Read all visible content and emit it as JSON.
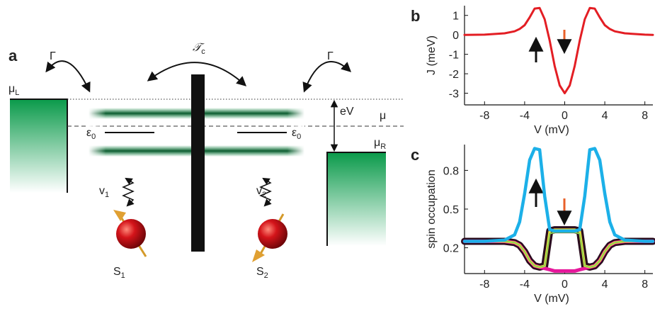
{
  "diagram": {
    "panel": "a",
    "labels": [
      {
        "text": "Γ"
      },
      {
        "text": "Γ"
      },
      {
        "text": "𝒯",
        "sub": "c"
      },
      {
        "text": "μ",
        "sub": "L"
      },
      {
        "text": "μ",
        "sub": "R"
      },
      {
        "text": "μ"
      },
      {
        "text": "eV"
      },
      {
        "text": "ε",
        "sub": "0"
      },
      {
        "text": "ε",
        "sub": "0"
      },
      {
        "text": "v",
        "sub": "1"
      },
      {
        "text": "v",
        "sub": "2"
      },
      {
        "text": "S",
        "sub": "1"
      },
      {
        "text": "S",
        "sub": "2"
      }
    ]
  },
  "chart_data": [
    {
      "type": "line",
      "panel": "b",
      "xlabel": "V (mV)",
      "ylabel": "J (meV)",
      "x": [
        -10,
        -8,
        -6,
        -5,
        -4.5,
        -4,
        -3.5,
        -3,
        -2.5,
        -2,
        -1.5,
        -1,
        -0.5,
        0,
        0.5,
        1,
        1.5,
        2,
        2.5,
        3,
        3.5,
        4,
        4.5,
        5,
        6,
        8,
        8.8
      ],
      "series": [
        {
          "color": "#e31e24",
          "values": [
            0,
            0.01,
            0.08,
            0.18,
            0.3,
            0.5,
            0.9,
            1.35,
            1.38,
            0.8,
            -0.3,
            -1.6,
            -2.6,
            -3,
            -2.6,
            -1.6,
            -0.3,
            0.8,
            1.38,
            1.35,
            0.9,
            0.5,
            0.3,
            0.18,
            0.08,
            0.01,
            0
          ]
        }
      ],
      "xlim": [
        -10,
        8.8
      ],
      "xticks": [
        -8,
        -4,
        0,
        4,
        8
      ],
      "ylim": [
        -3.6,
        1.5
      ],
      "yticks": [
        -3,
        -2,
        -1,
        0,
        1
      ]
    },
    {
      "type": "line",
      "panel": "c",
      "xlabel": "V (mV)",
      "ylabel": "spin occupation",
      "x": [
        -10,
        -8,
        -6,
        -5,
        -4.5,
        -4,
        -3.5,
        -3,
        -2.5,
        -2,
        -1.5,
        -1,
        -0.5,
        0,
        0.5,
        1,
        1.5,
        2,
        2.5,
        3,
        3.5,
        4,
        4.5,
        5,
        6,
        8,
        8.8
      ],
      "series": [
        {
          "color": "#2a0c1e",
          "values": [
            0.25,
            0.25,
            0.25,
            0.24,
            0.22,
            0.17,
            0.1,
            0.06,
            0.05,
            0.06,
            0.33,
            0.34,
            0.34,
            0.34,
            0.34,
            0.34,
            0.33,
            0.06,
            0.05,
            0.06,
            0.1,
            0.17,
            0.22,
            0.24,
            0.25,
            0.25,
            0.25
          ]
        },
        {
          "color": "#e6179b",
          "values": [
            0.25,
            0.25,
            0.25,
            0.24,
            0.22,
            0.17,
            0.1,
            0.06,
            0.05,
            0.04,
            0.03,
            0.02,
            0.02,
            0.02,
            0.02,
            0.02,
            0.03,
            0.04,
            0.05,
            0.06,
            0.1,
            0.17,
            0.22,
            0.24,
            0.25,
            0.25,
            0.25
          ]
        },
        {
          "color": "#f5e23f",
          "values": [
            0.25,
            0.25,
            0.25,
            0.24,
            0.22,
            0.17,
            0.1,
            0.06,
            0.05,
            0.06,
            0.33,
            0.34,
            0.34,
            0.34,
            0.34,
            0.34,
            0.33,
            0.06,
            0.05,
            0.06,
            0.1,
            0.17,
            0.22,
            0.24,
            0.25,
            0.25,
            0.25
          ]
        },
        {
          "color": "#8fd14f",
          "values": [
            0.25,
            0.25,
            0.25,
            0.24,
            0.22,
            0.17,
            0.1,
            0.06,
            0.05,
            0.06,
            0.31,
            0.32,
            0.32,
            0.32,
            0.32,
            0.32,
            0.31,
            0.06,
            0.05,
            0.06,
            0.1,
            0.17,
            0.22,
            0.24,
            0.25,
            0.25,
            0.25
          ]
        },
        {
          "color": "#1cb0e8",
          "values": [
            0.25,
            0.25,
            0.26,
            0.3,
            0.4,
            0.62,
            0.88,
            0.97,
            0.96,
            0.6,
            0.34,
            0.33,
            0.33,
            0.33,
            0.33,
            0.33,
            0.34,
            0.6,
            0.96,
            0.97,
            0.88,
            0.62,
            0.4,
            0.3,
            0.26,
            0.25,
            0.25
          ]
        }
      ],
      "xlim": [
        -10,
        8.8
      ],
      "xticks": [
        -8,
        -4,
        0,
        4,
        8
      ],
      "ylim": [
        0,
        1
      ],
      "yticks": [
        0.2,
        0.5,
        0.8
      ]
    }
  ]
}
